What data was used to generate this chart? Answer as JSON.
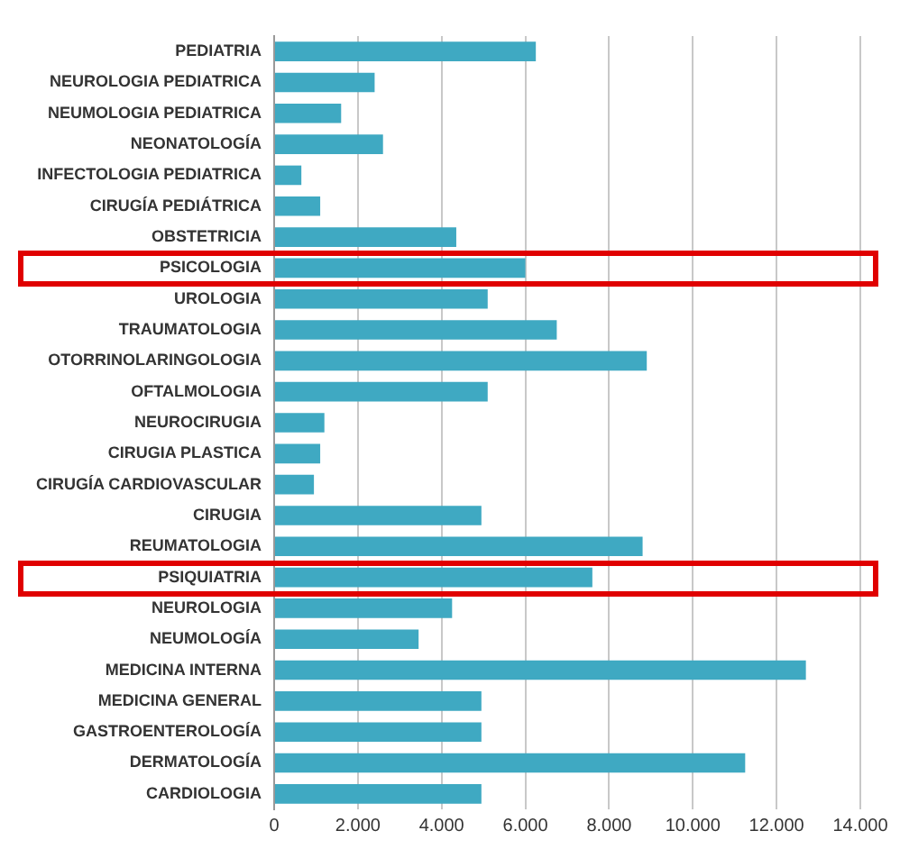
{
  "chart_data": {
    "type": "bar",
    "orientation": "horizontal",
    "categories": [
      "PEDIATRIA",
      "NEUROLOGIA PEDIATRICA",
      "NEUMOLOGIA PEDIATRICA",
      "NEONATOLOGÍA",
      "INFECTOLOGIA PEDIATRICA",
      "CIRUGÍA PEDIÁTRICA",
      "OBSTETRICIA",
      "PSICOLOGIA",
      "UROLOGIA",
      "TRAUMATOLOGIA",
      "OTORRINOLARINGOLOGIA",
      "OFTALMOLOGIA",
      "NEUROCIRUGIA",
      "CIRUGIA PLASTICA",
      "CIRUGÍA CARDIOVASCULAR",
      "CIRUGIA",
      "REUMATOLOGIA",
      "PSIQUIATRIA",
      "NEUROLOGIA",
      "NEUMOLOGÍA",
      "MEDICINA INTERNA",
      "MEDICINA GENERAL",
      "GASTROENTEROLOGÍA",
      "DERMATOLOGÍA",
      "CARDIOLOGIA"
    ],
    "values": [
      6250,
      2400,
      1600,
      2600,
      650,
      1100,
      4350,
      6000,
      5100,
      6750,
      8900,
      5100,
      1200,
      1100,
      950,
      4950,
      8800,
      7600,
      4250,
      3450,
      12700,
      4950,
      4950,
      11250,
      4950
    ],
    "color": "#3fa9c2",
    "xlim": [
      0,
      14000
    ],
    "xticks": [
      {
        "value": 0,
        "label": "0"
      },
      {
        "value": 2000,
        "label": "2.000"
      },
      {
        "value": 4000,
        "label": "4.000"
      },
      {
        "value": 6000,
        "label": "6.000"
      },
      {
        "value": 8000,
        "label": "8.000"
      },
      {
        "value": 10000,
        "label": "10.000"
      },
      {
        "value": 12000,
        "label": "12.000"
      },
      {
        "value": 14000,
        "label": "14.000"
      }
    ],
    "grid": "x"
  }
}
